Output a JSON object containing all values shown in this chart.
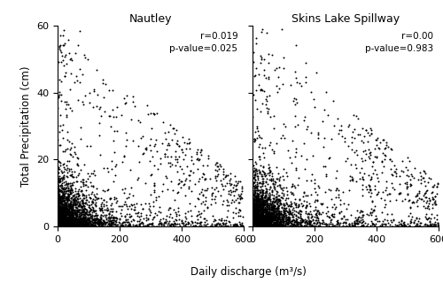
{
  "panel1_title": "Nautley",
  "panel2_title": "Skins Lake Spillway",
  "xlabel": "Daily discharge (m³/s)",
  "ylabel": "Total Precipitation (cm)",
  "xlim": [
    0,
    600
  ],
  "ylim": [
    0,
    60
  ],
  "xticks": [
    0,
    200,
    400,
    600
  ],
  "yticks": [
    0,
    20,
    40,
    60
  ],
  "panel1_annotation": "r=0.019\np-value=0.025",
  "panel2_annotation": "r=0.00\np-value=0.983",
  "dot_color": "#000000",
  "dot_size": 2,
  "dot_alpha": 1.0,
  "background_color": "#ffffff",
  "seed": 42,
  "n_points": 3000
}
